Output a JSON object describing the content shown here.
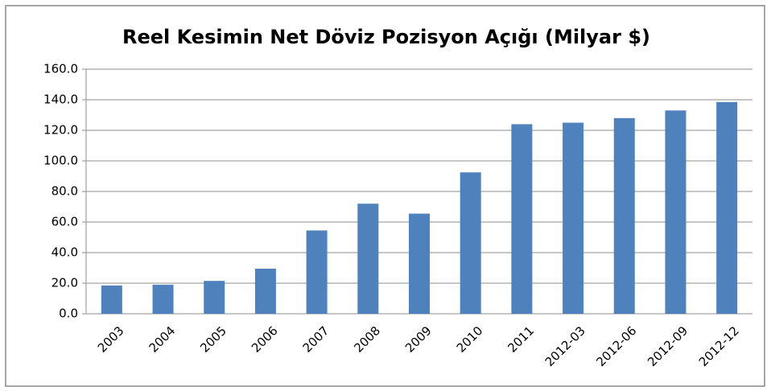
{
  "chart_data": {
    "type": "bar",
    "title": "Reel Kesimin Net Döviz Pozisyon Açığı (Milyar $)",
    "categories": [
      "2003",
      "2004",
      "2005",
      "2006",
      "2007",
      "2008",
      "2009",
      "2010",
      "2011",
      "2012-03",
      "2012-06",
      "2012-09",
      "2012-12"
    ],
    "values": [
      18.5,
      19,
      21.5,
      29.5,
      54.5,
      72,
      65.5,
      92.5,
      124,
      125,
      128,
      133,
      138.5
    ],
    "color": "#4f81bd",
    "ylim": [
      0,
      160
    ],
    "yticks": [
      {
        "value": 0,
        "label": "0.0"
      },
      {
        "value": 20,
        "label": "20.0"
      },
      {
        "value": 40,
        "label": "40.0"
      },
      {
        "value": 60,
        "label": "60.0"
      },
      {
        "value": 80,
        "label": "80.0"
      },
      {
        "value": 100,
        "label": "100.0"
      },
      {
        "value": 120,
        "label": "120.0"
      },
      {
        "value": 140,
        "label": "140.0"
      },
      {
        "value": 160,
        "label": "160.0"
      }
    ],
    "grid": true
  }
}
